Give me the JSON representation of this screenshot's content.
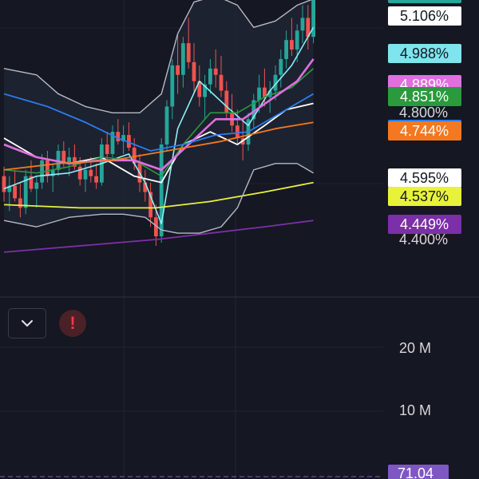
{
  "chart_data": {
    "type": "candlestick",
    "y_range": [
      4.35,
      5.2
    ],
    "axis_ticks": [
      {
        "value": 4.4,
        "label": "4.400%"
      },
      {
        "value": 4.8,
        "label": "4.800%"
      }
    ],
    "price_labels": [
      {
        "value": 5.106,
        "label": "5.106%",
        "bg": "#ffffff",
        "fg": "#131722"
      },
      {
        "value": 4.988,
        "label": "4.988%",
        "bg": "#7ee4ee",
        "fg": "#131722"
      },
      {
        "value": 4.889,
        "label": "4.889%",
        "bg": "#e16fe0",
        "fg": "#ffffff"
      },
      {
        "value": 4.851,
        "label": "4.851%",
        "bg": "#2a9a3c",
        "fg": "#ffffff"
      },
      {
        "value": 4.748,
        "label": "4.748%",
        "bg": "#2a7ef0",
        "fg": "#ffffff"
      },
      {
        "value": 4.744,
        "label": "4.744%",
        "bg": "#f4781f",
        "fg": "#ffffff"
      },
      {
        "value": 4.595,
        "label": "4.595%",
        "bg": "#ffffff",
        "fg": "#131722"
      },
      {
        "value": 4.537,
        "label": "4.537%",
        "bg": "#e8f23a",
        "fg": "#131722"
      },
      {
        "value": 4.449,
        "label": "4.449%",
        "bg": "#7b2fa8",
        "fg": "#ffffff"
      }
    ],
    "volume_ticks": [
      {
        "value": 20,
        "label": "20 M"
      },
      {
        "value": 10,
        "label": "10 M"
      }
    ],
    "rsi_value": "71.04",
    "candles": [
      [
        4.6,
        4.63,
        4.52,
        4.55
      ],
      [
        4.55,
        4.6,
        4.49,
        4.57
      ],
      [
        4.57,
        4.62,
        4.52,
        4.53
      ],
      [
        4.53,
        4.58,
        4.47,
        4.5
      ],
      [
        4.5,
        4.62,
        4.48,
        4.6
      ],
      [
        4.6,
        4.65,
        4.55,
        4.56
      ],
      [
        4.56,
        4.6,
        4.5,
        4.58
      ],
      [
        4.58,
        4.67,
        4.56,
        4.65
      ],
      [
        4.65,
        4.68,
        4.58,
        4.6
      ],
      [
        4.6,
        4.64,
        4.55,
        4.62
      ],
      [
        4.62,
        4.7,
        4.6,
        4.68
      ],
      [
        4.68,
        4.71,
        4.63,
        4.64
      ],
      [
        4.64,
        4.69,
        4.6,
        4.66
      ],
      [
        4.66,
        4.7,
        4.62,
        4.63
      ],
      [
        4.63,
        4.66,
        4.57,
        4.59
      ],
      [
        4.59,
        4.64,
        4.55,
        4.62
      ],
      [
        4.62,
        4.66,
        4.58,
        4.6
      ],
      [
        4.6,
        4.64,
        4.56,
        4.58
      ],
      [
        4.58,
        4.72,
        4.57,
        4.7
      ],
      [
        4.7,
        4.74,
        4.65,
        4.67
      ],
      [
        4.67,
        4.76,
        4.66,
        4.74
      ],
      [
        4.74,
        4.78,
        4.7,
        4.71
      ],
      [
        4.71,
        4.76,
        4.67,
        4.73
      ],
      [
        4.73,
        4.77,
        4.68,
        4.69
      ],
      [
        4.69,
        4.72,
        4.62,
        4.64
      ],
      [
        4.64,
        4.67,
        4.55,
        4.58
      ],
      [
        4.58,
        4.62,
        4.52,
        4.55
      ],
      [
        4.55,
        4.58,
        4.44,
        4.47
      ],
      [
        4.47,
        4.51,
        4.38,
        4.41
      ],
      [
        4.41,
        4.72,
        4.39,
        4.7
      ],
      [
        4.7,
        4.84,
        4.68,
        4.82
      ],
      [
        4.82,
        4.97,
        4.78,
        4.95
      ],
      [
        4.95,
        5.05,
        4.86,
        4.92
      ],
      [
        4.92,
        5.04,
        4.88,
        5.02
      ],
      [
        5.02,
        5.1,
        4.94,
        4.96
      ],
      [
        4.96,
        5.02,
        4.86,
        4.9
      ],
      [
        4.9,
        4.95,
        4.82,
        4.85
      ],
      [
        4.85,
        4.92,
        4.78,
        4.89
      ],
      [
        4.89,
        4.97,
        4.86,
        4.94
      ],
      [
        4.94,
        5.0,
        4.88,
        4.92
      ],
      [
        4.92,
        4.98,
        4.85,
        4.87
      ],
      [
        4.87,
        4.9,
        4.78,
        4.8
      ],
      [
        4.8,
        4.86,
        4.74,
        4.76
      ],
      [
        4.76,
        4.81,
        4.7,
        4.72
      ],
      [
        4.72,
        4.78,
        4.65,
        4.7
      ],
      [
        4.7,
        4.8,
        4.68,
        4.78
      ],
      [
        4.78,
        4.86,
        4.75,
        4.84
      ],
      [
        4.84,
        4.92,
        4.8,
        4.88
      ],
      [
        4.88,
        4.94,
        4.82,
        4.85
      ],
      [
        4.85,
        4.9,
        4.8,
        4.87
      ],
      [
        4.87,
        4.95,
        4.84,
        4.92
      ],
      [
        4.92,
        5.0,
        4.88,
        4.97
      ],
      [
        4.97,
        5.06,
        4.94,
        5.03
      ],
      [
        5.03,
        5.1,
        4.98,
        5.0
      ],
      [
        5.0,
        5.08,
        4.96,
        5.06
      ],
      [
        5.06,
        5.14,
        5.02,
        5.1
      ],
      [
        5.1,
        5.14,
        5.0,
        5.04
      ],
      [
        5.04,
        5.2,
        5.02,
        5.18
      ]
    ],
    "indicators": [
      {
        "color": "#ffffff",
        "width": 1.8,
        "points": [
          [
            0,
            4.72
          ],
          [
            6,
            4.66
          ],
          [
            12,
            4.64
          ],
          [
            18,
            4.66
          ],
          [
            24,
            4.6
          ],
          [
            29,
            4.58
          ],
          [
            33,
            4.7
          ],
          [
            38,
            4.74
          ],
          [
            43,
            4.7
          ],
          [
            48,
            4.76
          ],
          [
            52,
            4.81
          ],
          [
            57,
            4.83
          ]
        ]
      },
      {
        "color": "#8cf0f8",
        "width": 1.6,
        "points": [
          [
            0,
            4.56
          ],
          [
            6,
            4.6
          ],
          [
            12,
            4.61
          ],
          [
            18,
            4.64
          ],
          [
            23,
            4.67
          ],
          [
            26,
            4.58
          ],
          [
            29,
            4.45
          ],
          [
            32,
            4.75
          ],
          [
            36,
            4.9
          ],
          [
            41,
            4.82
          ],
          [
            45,
            4.76
          ],
          [
            49,
            4.87
          ],
          [
            53,
            4.95
          ],
          [
            57,
            5.07
          ]
        ]
      },
      {
        "color": "#2a9a3c",
        "width": 1.6,
        "points": [
          [
            0,
            4.62
          ],
          [
            6,
            4.61
          ],
          [
            12,
            4.63
          ],
          [
            18,
            4.66
          ],
          [
            24,
            4.65
          ],
          [
            29,
            4.6
          ],
          [
            33,
            4.7
          ],
          [
            38,
            4.8
          ],
          [
            43,
            4.8
          ],
          [
            48,
            4.85
          ],
          [
            53,
            4.88
          ],
          [
            57,
            4.94
          ]
        ]
      },
      {
        "color": "#e16fe0",
        "width": 2.6,
        "points": [
          [
            0,
            4.7
          ],
          [
            6,
            4.66
          ],
          [
            12,
            4.64
          ],
          [
            18,
            4.65
          ],
          [
            24,
            4.65
          ],
          [
            29,
            4.62
          ],
          [
            34,
            4.7
          ],
          [
            39,
            4.78
          ],
          [
            44,
            4.78
          ],
          [
            49,
            4.84
          ],
          [
            54,
            4.9
          ],
          [
            57,
            4.97
          ]
        ]
      },
      {
        "color": "#2a7ef0",
        "width": 1.8,
        "points": [
          [
            0,
            4.86
          ],
          [
            8,
            4.82
          ],
          [
            15,
            4.77
          ],
          [
            21,
            4.72
          ],
          [
            27,
            4.68
          ],
          [
            33,
            4.7
          ],
          [
            39,
            4.73
          ],
          [
            45,
            4.74
          ],
          [
            51,
            4.8
          ],
          [
            57,
            4.86
          ]
        ]
      },
      {
        "color": "#f4781f",
        "width": 1.8,
        "points": [
          [
            0,
            4.62
          ],
          [
            10,
            4.64
          ],
          [
            20,
            4.65
          ],
          [
            30,
            4.68
          ],
          [
            40,
            4.71
          ],
          [
            50,
            4.75
          ],
          [
            57,
            4.77
          ]
        ]
      },
      {
        "color": "#e8f23a",
        "width": 1.8,
        "points": [
          [
            0,
            4.51
          ],
          [
            14,
            4.5
          ],
          [
            28,
            4.5
          ],
          [
            38,
            4.52
          ],
          [
            48,
            4.55
          ],
          [
            57,
            4.58
          ]
        ]
      },
      {
        "color": "#7b2fa8",
        "width": 1.8,
        "points": [
          [
            0,
            4.36
          ],
          [
            14,
            4.38
          ],
          [
            28,
            4.4
          ],
          [
            38,
            4.42
          ],
          [
            48,
            4.44
          ],
          [
            57,
            4.46
          ]
        ]
      },
      {
        "color": "#b7bac4",
        "width": 1.4,
        "points": [
          [
            0,
            4.94
          ],
          [
            6,
            4.92
          ],
          [
            10,
            4.86
          ],
          [
            15,
            4.82
          ],
          [
            20,
            4.8
          ],
          [
            25,
            4.8
          ],
          [
            29,
            4.86
          ],
          [
            32,
            5.05
          ],
          [
            35,
            5.15
          ],
          [
            39,
            5.17
          ],
          [
            43,
            5.14
          ],
          [
            46,
            5.07
          ],
          [
            50,
            5.09
          ],
          [
            54,
            5.14
          ],
          [
            57,
            5.16
          ]
        ]
      },
      {
        "color": "#b7bac4",
        "width": 1.4,
        "points": [
          [
            0,
            4.46
          ],
          [
            6,
            4.44
          ],
          [
            12,
            4.47
          ],
          [
            18,
            4.48
          ],
          [
            22,
            4.48
          ],
          [
            26,
            4.47
          ],
          [
            29,
            4.43
          ],
          [
            32,
            4.42
          ],
          [
            36,
            4.42
          ],
          [
            40,
            4.44
          ],
          [
            43,
            4.5
          ],
          [
            46,
            4.62
          ],
          [
            50,
            4.64
          ],
          [
            54,
            4.64
          ],
          [
            57,
            4.61
          ]
        ]
      }
    ]
  },
  "controls": {
    "collapse_icon": "chevron-down-icon",
    "alert_icon": "exclamation-icon",
    "alert_symbol": "!"
  }
}
